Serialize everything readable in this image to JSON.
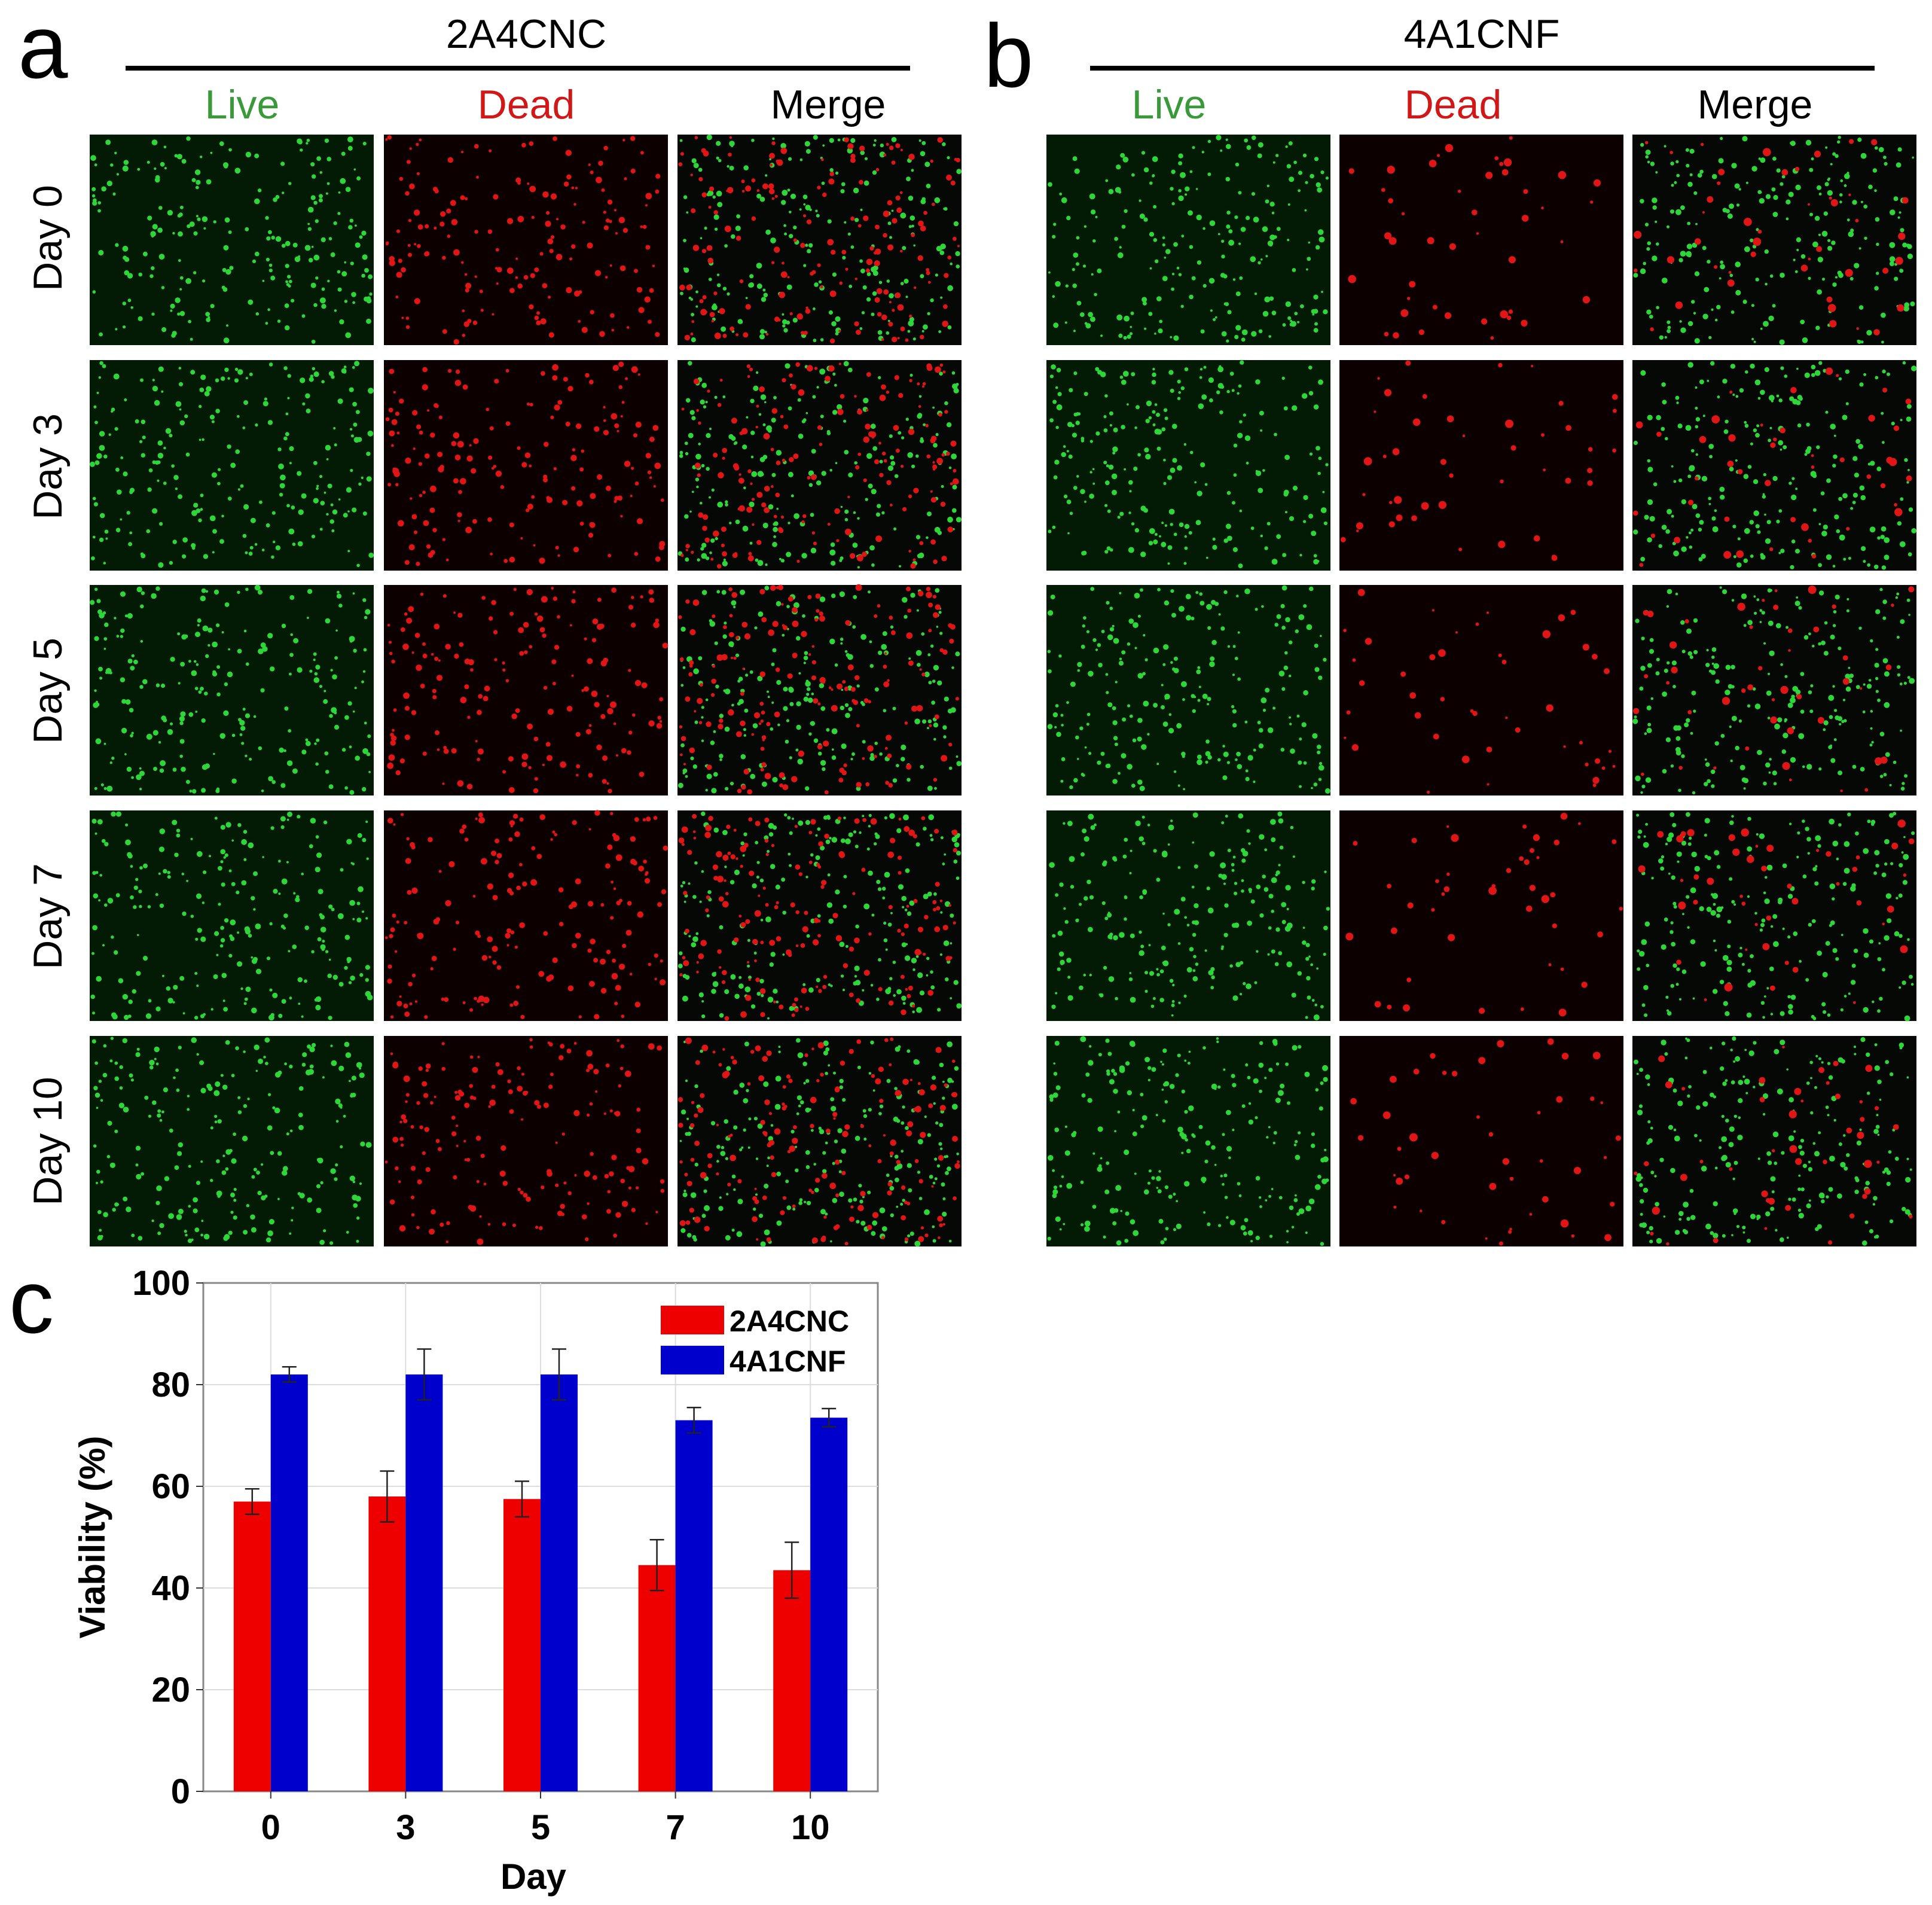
{
  "panel_a": {
    "letter": "a",
    "group": "2A4CNC",
    "columns": [
      "Live",
      "Dead",
      "Merge"
    ],
    "rows": [
      "Day 0",
      "Day 3",
      "Day 5",
      "Day 7",
      "Day 10"
    ]
  },
  "panel_b": {
    "letter": "b",
    "group": "4A1CNF",
    "columns": [
      "Live",
      "Dead",
      "Merge"
    ],
    "rows": [
      "Day 0",
      "Day 3",
      "Day 5",
      "Day 7",
      "Day 10"
    ]
  },
  "panel_c": {
    "letter": "c"
  },
  "colors": {
    "live_label": "#3a9a3a",
    "dead_label": "#d01818",
    "series_2A4CNC": "#ee0000",
    "series_4A1CNF": "#0000cc"
  },
  "chart_data": {
    "type": "bar",
    "xlabel": "Day",
    "ylabel": "Viability (%)",
    "categories": [
      "0",
      "3",
      "5",
      "7",
      "10"
    ],
    "ylim": [
      0,
      100
    ],
    "yticks": [
      "0",
      "20",
      "40",
      "60",
      "80",
      "100"
    ],
    "grid": true,
    "legend_position": "top-right",
    "series": [
      {
        "name": "2A4CNC",
        "values": [
          57,
          58,
          57.5,
          44.5,
          43.5
        ],
        "errors": [
          2.5,
          5,
          3.5,
          5,
          5.5
        ]
      },
      {
        "name": "4A1CNF",
        "values": [
          82,
          82,
          82,
          73,
          73.5
        ],
        "errors": [
          1.5,
          5,
          5,
          2.5,
          1.8
        ]
      }
    ]
  }
}
